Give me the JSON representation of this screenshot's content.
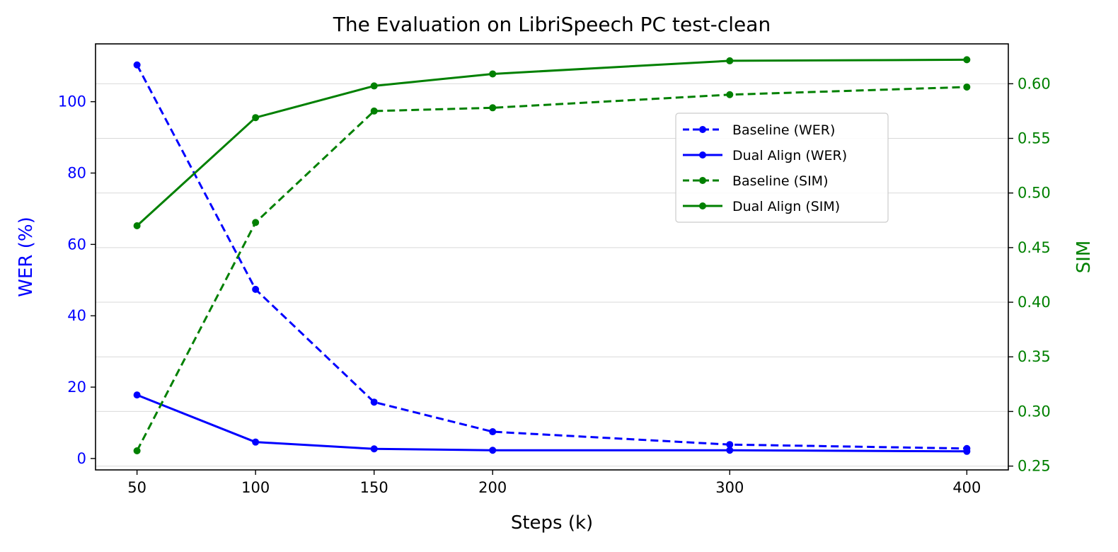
{
  "chart_data": {
    "type": "line",
    "title": "The Evaluation on LibriSpeech PC test-clean",
    "xlabel": "Steps (k)",
    "ylabel_left": "WER (%)",
    "ylabel_right": "SIM",
    "x": [
      50,
      100,
      150,
      200,
      300,
      400
    ],
    "x_tick_labels": [
      "50",
      "100",
      "150",
      "200",
      "300",
      "400"
    ],
    "y_left_ticks": [
      "0",
      "20",
      "40",
      "60",
      "80",
      "100"
    ],
    "y_right_ticks": [
      "0.25",
      "0.30",
      "0.35",
      "0.40",
      "0.45",
      "0.50",
      "0.55",
      "0.60"
    ],
    "ylim_left": [
      -3.2,
      116.2
    ],
    "ylim_right": [
      0.2465,
      0.6365
    ],
    "grid": "horizontal (right axis ticks)",
    "legend_position": "upper-right",
    "colors": {
      "wer": "#0000ff",
      "sim": "#008000"
    },
    "series": [
      {
        "name": "Baseline (WER)",
        "axis": "left",
        "color": "#0000ff",
        "style": "dashed",
        "values": [
          110.3,
          47.4,
          15.8,
          7.5,
          3.9,
          2.8
        ]
      },
      {
        "name": "Dual Align (WER)",
        "axis": "left",
        "color": "#0000ff",
        "style": "solid",
        "values": [
          17.8,
          4.6,
          2.7,
          2.3,
          2.3,
          2.0
        ]
      },
      {
        "name": "Baseline (SIM)",
        "axis": "right",
        "color": "#008000",
        "style": "dashed",
        "values": [
          0.264,
          0.473,
          0.575,
          0.578,
          0.59,
          0.597
        ]
      },
      {
        "name": "Dual Align (SIM)",
        "axis": "right",
        "color": "#008000",
        "style": "solid",
        "values": [
          0.47,
          0.569,
          0.598,
          0.609,
          0.621,
          0.622
        ]
      }
    ]
  }
}
